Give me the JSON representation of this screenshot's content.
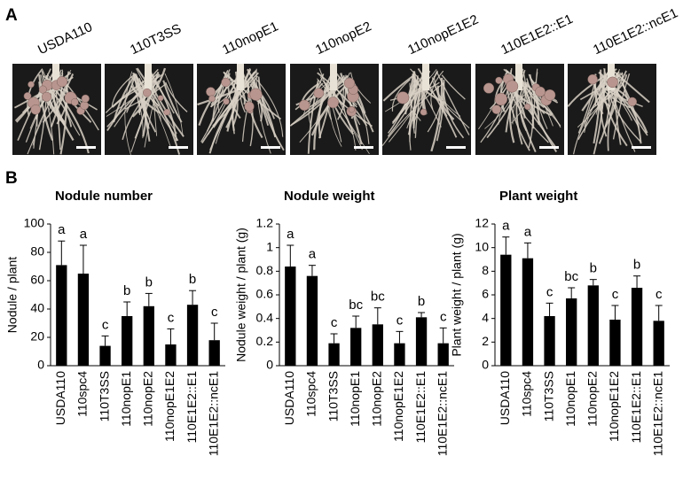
{
  "panel_a": {
    "label": "A",
    "strains": [
      "USDA110",
      "110T3SS",
      "110nopE1",
      "110nopE2",
      "110nopE1E2",
      "110E1E2::E1",
      "110E1E2::ncE1"
    ]
  },
  "panel_b_label": "B",
  "chart_data": [
    {
      "type": "bar",
      "title": "Nodule number",
      "y_label": "Nodule / plant",
      "categories": [
        "USDA110",
        "110spc4",
        "110T3SS",
        "110nopE1",
        "110nopE2",
        "110nopE1E2",
        "110E1E2::E1",
        "110E1E2::ncE1"
      ],
      "series": [
        {
          "color": "#000000",
          "values": [
            71,
            65,
            14,
            35,
            42,
            15,
            43,
            18
          ],
          "errors": [
            17,
            20,
            7,
            10,
            9,
            11,
            10,
            12
          ]
        }
      ],
      "letters": [
        "a",
        "a",
        "c",
        "b",
        "b",
        "c",
        "b",
        "c"
      ],
      "ylim": [
        0,
        100
      ],
      "yticks": [
        0,
        20,
        40,
        60,
        80,
        100
      ]
    },
    {
      "type": "bar",
      "title": "Nodule weight",
      "y_label": "Nodule weight / plant (g)",
      "categories": [
        "USDA110",
        "110spc4",
        "110T3SS",
        "110nopE1",
        "110nopE2",
        "110nopE1E2",
        "110E1E2::E1",
        "110E1E2::ncE1"
      ],
      "series": [
        {
          "color": "#000000",
          "values": [
            0.84,
            0.76,
            0.19,
            0.32,
            0.35,
            0.19,
            0.41,
            0.19
          ],
          "errors": [
            0.18,
            0.09,
            0.08,
            0.1,
            0.14,
            0.1,
            0.04,
            0.13
          ]
        }
      ],
      "letters": [
        "a",
        "a",
        "c",
        "bc",
        "bc",
        "c",
        "b",
        "c"
      ],
      "ylim": [
        0,
        1.2
      ],
      "yticks": [
        0,
        0.2,
        0.4,
        0.6,
        0.8,
        1,
        1.2
      ]
    },
    {
      "type": "bar",
      "title": "Plant weight",
      "y_label": "Plant weight / plant (g)",
      "categories": [
        "USDA110",
        "110spc4",
        "110T3SS",
        "110nopE1",
        "110nopE2",
        "110nopE1E2",
        "110E1E2::E1",
        "110E1E2::ncE1"
      ],
      "series": [
        {
          "color": "#000000",
          "values": [
            9.4,
            9.1,
            4.2,
            5.7,
            6.8,
            3.9,
            6.6,
            3.8
          ],
          "errors": [
            1.5,
            1.3,
            1.1,
            0.9,
            0.5,
            1.2,
            1.0,
            1.3
          ]
        }
      ],
      "letters": [
        "a",
        "a",
        "c",
        "bc",
        "b",
        "c",
        "b",
        "c"
      ],
      "ylim": [
        0,
        12
      ],
      "yticks": [
        0,
        2,
        4,
        6,
        8,
        10,
        12
      ]
    }
  ]
}
